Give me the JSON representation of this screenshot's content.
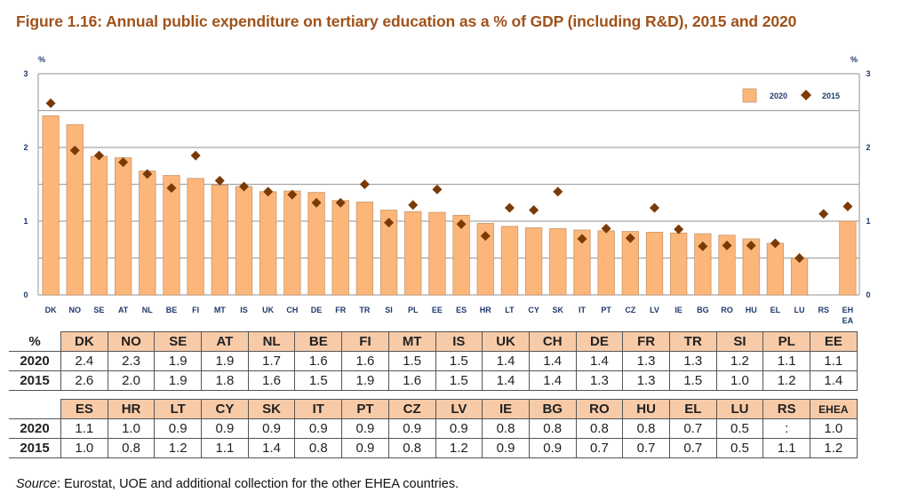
{
  "title": "Figure 1.16: Annual public expenditure on tertiary education as a % of GDP (including R&D), 2015 and 2020",
  "colors": {
    "title": "#a0521a",
    "bar_2020": "#fdb67a",
    "bar_border": "#c8956a",
    "marker_2015": "#7a3a06",
    "axis_text": "#1f3a6e",
    "grid": "#a6a6a6",
    "table_header": "#f8cba8"
  },
  "chart_data": {
    "type": "bar",
    "title": "Annual public expenditure on tertiary education as a % of GDP (including R&D), 2015 and 2020",
    "xlabel": "",
    "ylabel": "%",
    "ylabel_right": "%",
    "ylim": [
      0,
      3
    ],
    "yticks": [
      0,
      1,
      2,
      3
    ],
    "y_tick_labels": [
      "0",
      "1",
      "2",
      "3"
    ],
    "grid": true,
    "grid_step": 0.5,
    "legend_position": "top-right",
    "categories": [
      "DK",
      "NO",
      "SE",
      "AT",
      "NL",
      "BE",
      "FI",
      "MT",
      "IS",
      "UK",
      "CH",
      "DE",
      "FR",
      "TR",
      "SI",
      "PL",
      "EE",
      "ES",
      "HR",
      "LT",
      "CY",
      "SK",
      "IT",
      "PT",
      "CZ",
      "LV",
      "IE",
      "BG",
      "RO",
      "HU",
      "EL",
      "LU",
      "RS",
      "EH\nEA"
    ],
    "series": [
      {
        "name": "2020",
        "kind": "bar",
        "values": [
          2.43,
          2.31,
          1.88,
          1.86,
          1.68,
          1.62,
          1.58,
          1.49,
          1.47,
          1.4,
          1.41,
          1.39,
          1.28,
          1.26,
          1.15,
          1.13,
          1.12,
          1.08,
          0.97,
          0.93,
          0.91,
          0.9,
          0.88,
          0.87,
          0.86,
          0.85,
          0.84,
          0.83,
          0.81,
          0.76,
          0.7,
          0.5,
          null,
          1.0
        ]
      },
      {
        "name": "2015",
        "kind": "marker",
        "values": [
          2.6,
          1.96,
          1.89,
          1.8,
          1.64,
          1.45,
          1.89,
          1.55,
          1.47,
          1.4,
          1.36,
          1.25,
          1.25,
          1.5,
          0.98,
          1.22,
          1.43,
          0.96,
          0.8,
          1.18,
          1.15,
          1.4,
          0.76,
          0.9,
          0.77,
          1.18,
          0.89,
          0.66,
          0.67,
          0.67,
          0.7,
          0.5,
          1.1,
          1.2
        ]
      }
    ],
    "legend": [
      "2020",
      "2015"
    ]
  },
  "table": {
    "corner_label": "%",
    "row_labels": [
      "2020",
      "2015"
    ],
    "blocks": [
      {
        "headers": [
          "DK",
          "NO",
          "SE",
          "AT",
          "NL",
          "BE",
          "FI",
          "MT",
          "IS",
          "UK",
          "CH",
          "DE",
          "FR",
          "TR",
          "SI",
          "PL",
          "EE"
        ],
        "rows": [
          [
            "2.4",
            "2.3",
            "1.9",
            "1.9",
            "1.7",
            "1.6",
            "1.6",
            "1.5",
            "1.5",
            "1.4",
            "1.4",
            "1.4",
            "1.3",
            "1.3",
            "1.2",
            "1.1",
            "1.1"
          ],
          [
            "2.6",
            "2.0",
            "1.9",
            "1.8",
            "1.6",
            "1.5",
            "1.9",
            "1.6",
            "1.5",
            "1.4",
            "1.4",
            "1.3",
            "1.3",
            "1.5",
            "1.0",
            "1.2",
            "1.4"
          ]
        ]
      },
      {
        "headers": [
          "ES",
          "HR",
          "LT",
          "CY",
          "SK",
          "IT",
          "PT",
          "CZ",
          "LV",
          "IE",
          "BG",
          "RO",
          "HU",
          "EL",
          "LU",
          "RS",
          "EHEA"
        ],
        "rows": [
          [
            "1.1",
            "1.0",
            "0.9",
            "0.9",
            "0.9",
            "0.9",
            "0.9",
            "0.9",
            "0.9",
            "0.8",
            "0.8",
            "0.8",
            "0.8",
            "0.7",
            "0.5",
            ":",
            "1.0"
          ],
          [
            "1.0",
            "0.8",
            "1.2",
            "1.1",
            "1.4",
            "0.8",
            "0.9",
            "0.8",
            "1.2",
            "0.9",
            "0.9",
            "0.7",
            "0.7",
            "0.7",
            "0.5",
            "1.1",
            "1.2"
          ]
        ]
      }
    ]
  },
  "source": {
    "label": "Source",
    "text": ": Eurostat, UOE and additional collection for the other EHEA countries."
  }
}
